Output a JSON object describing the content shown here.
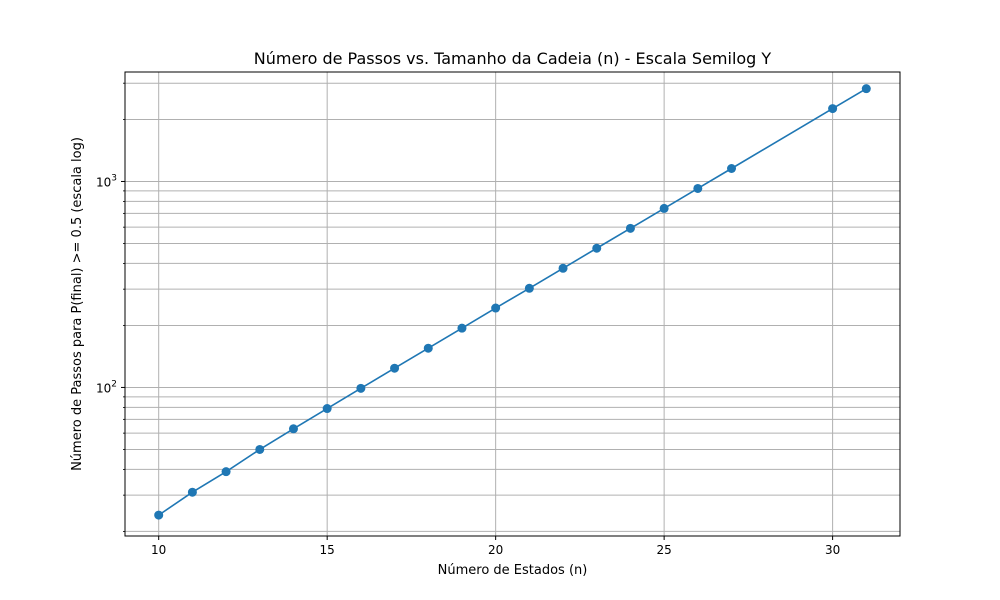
{
  "chart_data": {
    "type": "line",
    "title": "Número de Passos vs. Tamanho da Cadeia (n) - Escala Semilog Y",
    "xlabel": "Número de Estados (n)",
    "ylabel": "Número de Passos para P(final) >= 0.5 (escala log)",
    "y_scale": "log",
    "grid": true,
    "xlim": [
      9.0,
      32.0
    ],
    "ylim": [
      19,
      3400
    ],
    "x_ticks": [
      10,
      15,
      20,
      25,
      30
    ],
    "x_tick_labels": [
      "10",
      "15",
      "20",
      "25",
      "30"
    ],
    "y_major_ticks": [
      100,
      1000
    ],
    "y_major_tick_labels": [
      "10",
      "10"
    ],
    "y_major_tick_exponents": [
      "2",
      "3"
    ],
    "y_minor_ticks": [
      20,
      30,
      40,
      50,
      60,
      70,
      80,
      90,
      200,
      300,
      400,
      500,
      600,
      700,
      800,
      900,
      2000,
      3000
    ],
    "series": [
      {
        "color": "#1f77b4",
        "marker": "circle",
        "x": [
          10,
          11,
          12,
          13,
          14,
          15,
          16,
          17,
          18,
          19,
          20,
          21,
          22,
          23,
          24,
          25,
          26,
          27,
          30,
          31
        ],
        "y": [
          24,
          31,
          39,
          50,
          63,
          79,
          99,
          124,
          155,
          194,
          243,
          303,
          379,
          474,
          592,
          740,
          925,
          1156,
          2258,
          2822
        ]
      }
    ]
  }
}
